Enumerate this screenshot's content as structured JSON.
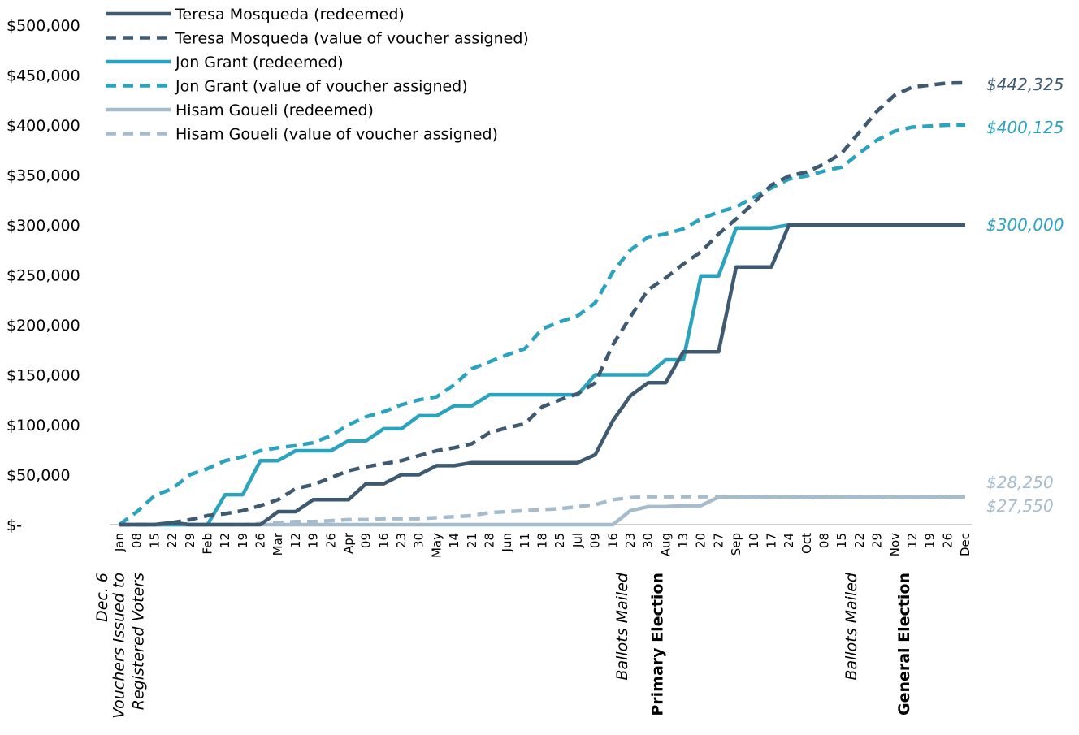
{
  "chart_data": {
    "type": "line",
    "ylim": [
      0,
      500000
    ],
    "grid": false,
    "legend_placement": "top-left",
    "y_ticks": [
      "$-",
      "$50,000",
      "$100,000",
      "$150,000",
      "$200,000",
      "$250,000",
      "$300,000",
      "$350,000",
      "$400,000",
      "$450,000",
      "$500,000"
    ],
    "x_ticks": [
      "Jan",
      "08",
      "15",
      "22",
      "29",
      "Feb",
      "12",
      "19",
      "26",
      "Mar",
      "12",
      "19",
      "26",
      "Apr",
      "09",
      "16",
      "23",
      "30",
      "May",
      "14",
      "21",
      "28",
      "Jun",
      "11",
      "18",
      "25",
      "Jul",
      "09",
      "16",
      "23",
      "30",
      "Aug",
      "13",
      "20",
      "27",
      "Sep",
      "10",
      "17",
      "24",
      "Oct",
      "08",
      "15",
      "22",
      "29",
      "Nov",
      "12",
      "19",
      "26",
      "Dec"
    ],
    "series": [
      {
        "name": "Teresa Mosqueda (redeemed)",
        "color": "#3f5a70",
        "style": "solid",
        "values": [
          0,
          0,
          0,
          2000,
          0,
          0,
          0,
          0,
          0,
          13000,
          13000,
          25000,
          25000,
          25000,
          41000,
          41000,
          50000,
          50000,
          59000,
          59000,
          62000,
          62000,
          62000,
          62000,
          62000,
          62000,
          62000,
          70000,
          104000,
          129000,
          142000,
          142000,
          173000,
          173000,
          173000,
          258000,
          258000,
          258000,
          300000,
          300000,
          300000,
          300000,
          300000,
          300000,
          300000,
          300000,
          300000,
          300000,
          300000
        ]
      },
      {
        "name": "Teresa Mosqueda (value of voucher assigned)",
        "color": "#3f5a70",
        "style": "dashed",
        "values": [
          0,
          0,
          0,
          2000,
          5000,
          9000,
          11000,
          14000,
          19000,
          25000,
          36000,
          40000,
          47000,
          54000,
          58000,
          61000,
          64000,
          69000,
          74000,
          77000,
          81000,
          92000,
          97000,
          101000,
          118000,
          125000,
          131000,
          142000,
          180000,
          208000,
          235000,
          247000,
          261000,
          273000,
          291000,
          306000,
          322000,
          340000,
          349000,
          353000,
          361000,
          372000,
          393000,
          414000,
          430000,
          438000,
          440000,
          442000,
          442325
        ]
      },
      {
        "name": "Jon Grant (redeemed)",
        "color": "#2ba3bf",
        "style": "solid",
        "values": [
          0,
          0,
          0,
          0,
          0,
          0,
          30000,
          30000,
          64000,
          64000,
          74000,
          74000,
          74000,
          84000,
          84000,
          96000,
          96000,
          109000,
          109000,
          119000,
          119000,
          130000,
          130000,
          130000,
          130000,
          130000,
          130000,
          150000,
          150000,
          150000,
          150000,
          165000,
          165000,
          249000,
          249000,
          297000,
          297000,
          297000,
          300000,
          300000,
          300000,
          300000,
          300000,
          300000,
          300000,
          300000,
          300000,
          300000,
          300000
        ]
      },
      {
        "name": "Jon Grant (value of voucher assigned)",
        "color": "#2ba3bf",
        "style": "dashed",
        "values": [
          0,
          13000,
          29000,
          36000,
          50000,
          56000,
          64000,
          68000,
          74000,
          77000,
          79000,
          82000,
          89000,
          100000,
          108000,
          113000,
          120000,
          125000,
          128000,
          140000,
          156000,
          163000,
          170000,
          176000,
          196000,
          203000,
          209000,
          222000,
          253000,
          275000,
          288000,
          291000,
          296000,
          306000,
          313000,
          318000,
          328000,
          337000,
          346000,
          349000,
          354000,
          358000,
          372000,
          385000,
          394000,
          398000,
          399000,
          400000,
          400125
        ]
      },
      {
        "name": "Hisam Goueli (redeemed)",
        "color": "#a6bccd",
        "style": "solid",
        "values": [
          0,
          0,
          0,
          0,
          0,
          0,
          0,
          0,
          0,
          0,
          0,
          0,
          0,
          0,
          0,
          0,
          0,
          0,
          0,
          0,
          0,
          0,
          0,
          0,
          0,
          0,
          0,
          0,
          0,
          14000,
          18000,
          18000,
          19000,
          19000,
          27550,
          27550,
          27550,
          27550,
          27550,
          27550,
          27550,
          27550,
          27550,
          27550,
          27550,
          27550,
          27550,
          27550,
          27550
        ]
      },
      {
        "name": "Hisam Goueli (value of voucher assigned)",
        "color": "#a6bccd",
        "style": "dashed",
        "values": [
          0,
          0,
          0,
          0,
          0,
          0,
          0,
          0,
          1000,
          2000,
          3000,
          3000,
          4000,
          5000,
          5000,
          6000,
          6000,
          6000,
          7000,
          8000,
          9000,
          12000,
          13000,
          14000,
          15000,
          16000,
          18000,
          20000,
          25000,
          27000,
          28000,
          28000,
          28000,
          28000,
          28000,
          28000,
          28000,
          28000,
          28000,
          28000,
          28000,
          28000,
          28000,
          28000,
          28000,
          28000,
          28000,
          28000,
          28250
        ]
      }
    ],
    "end_labels": [
      {
        "text": "$442,325",
        "value": 442325,
        "color": "#3f5a70",
        "italic": true
      },
      {
        "text": "$400,125",
        "value": 400125,
        "color": "#2ba3bf",
        "italic": true
      },
      {
        "text": "$300,000",
        "value": 300000,
        "color": "#2ba3bf",
        "italic": false
      },
      {
        "text": "$28,250",
        "value": 28250,
        "color": "#a6bccd",
        "italic": true
      },
      {
        "text": "$27,550",
        "value": 27550,
        "color": "#a6bccd",
        "italic": true
      }
    ],
    "events": [
      {
        "lines": [
          "Dec. 6"
        ],
        "at_index": -0.5,
        "style": "italic"
      },
      {
        "lines": [
          "Vouchers Issued to",
          "Registered Voters"
        ],
        "at_index": 1,
        "style": "italic"
      },
      {
        "lines": [
          "Ballots Mailed"
        ],
        "at_index": 29,
        "style": "italic"
      },
      {
        "lines": [
          "Primary Election"
        ],
        "at_index": 31,
        "style": "bold"
      },
      {
        "lines": [
          "Ballots Mailed"
        ],
        "at_index": 42,
        "style": "italic"
      },
      {
        "lines": [
          "General Election"
        ],
        "at_index": 45,
        "style": "bold"
      }
    ]
  }
}
